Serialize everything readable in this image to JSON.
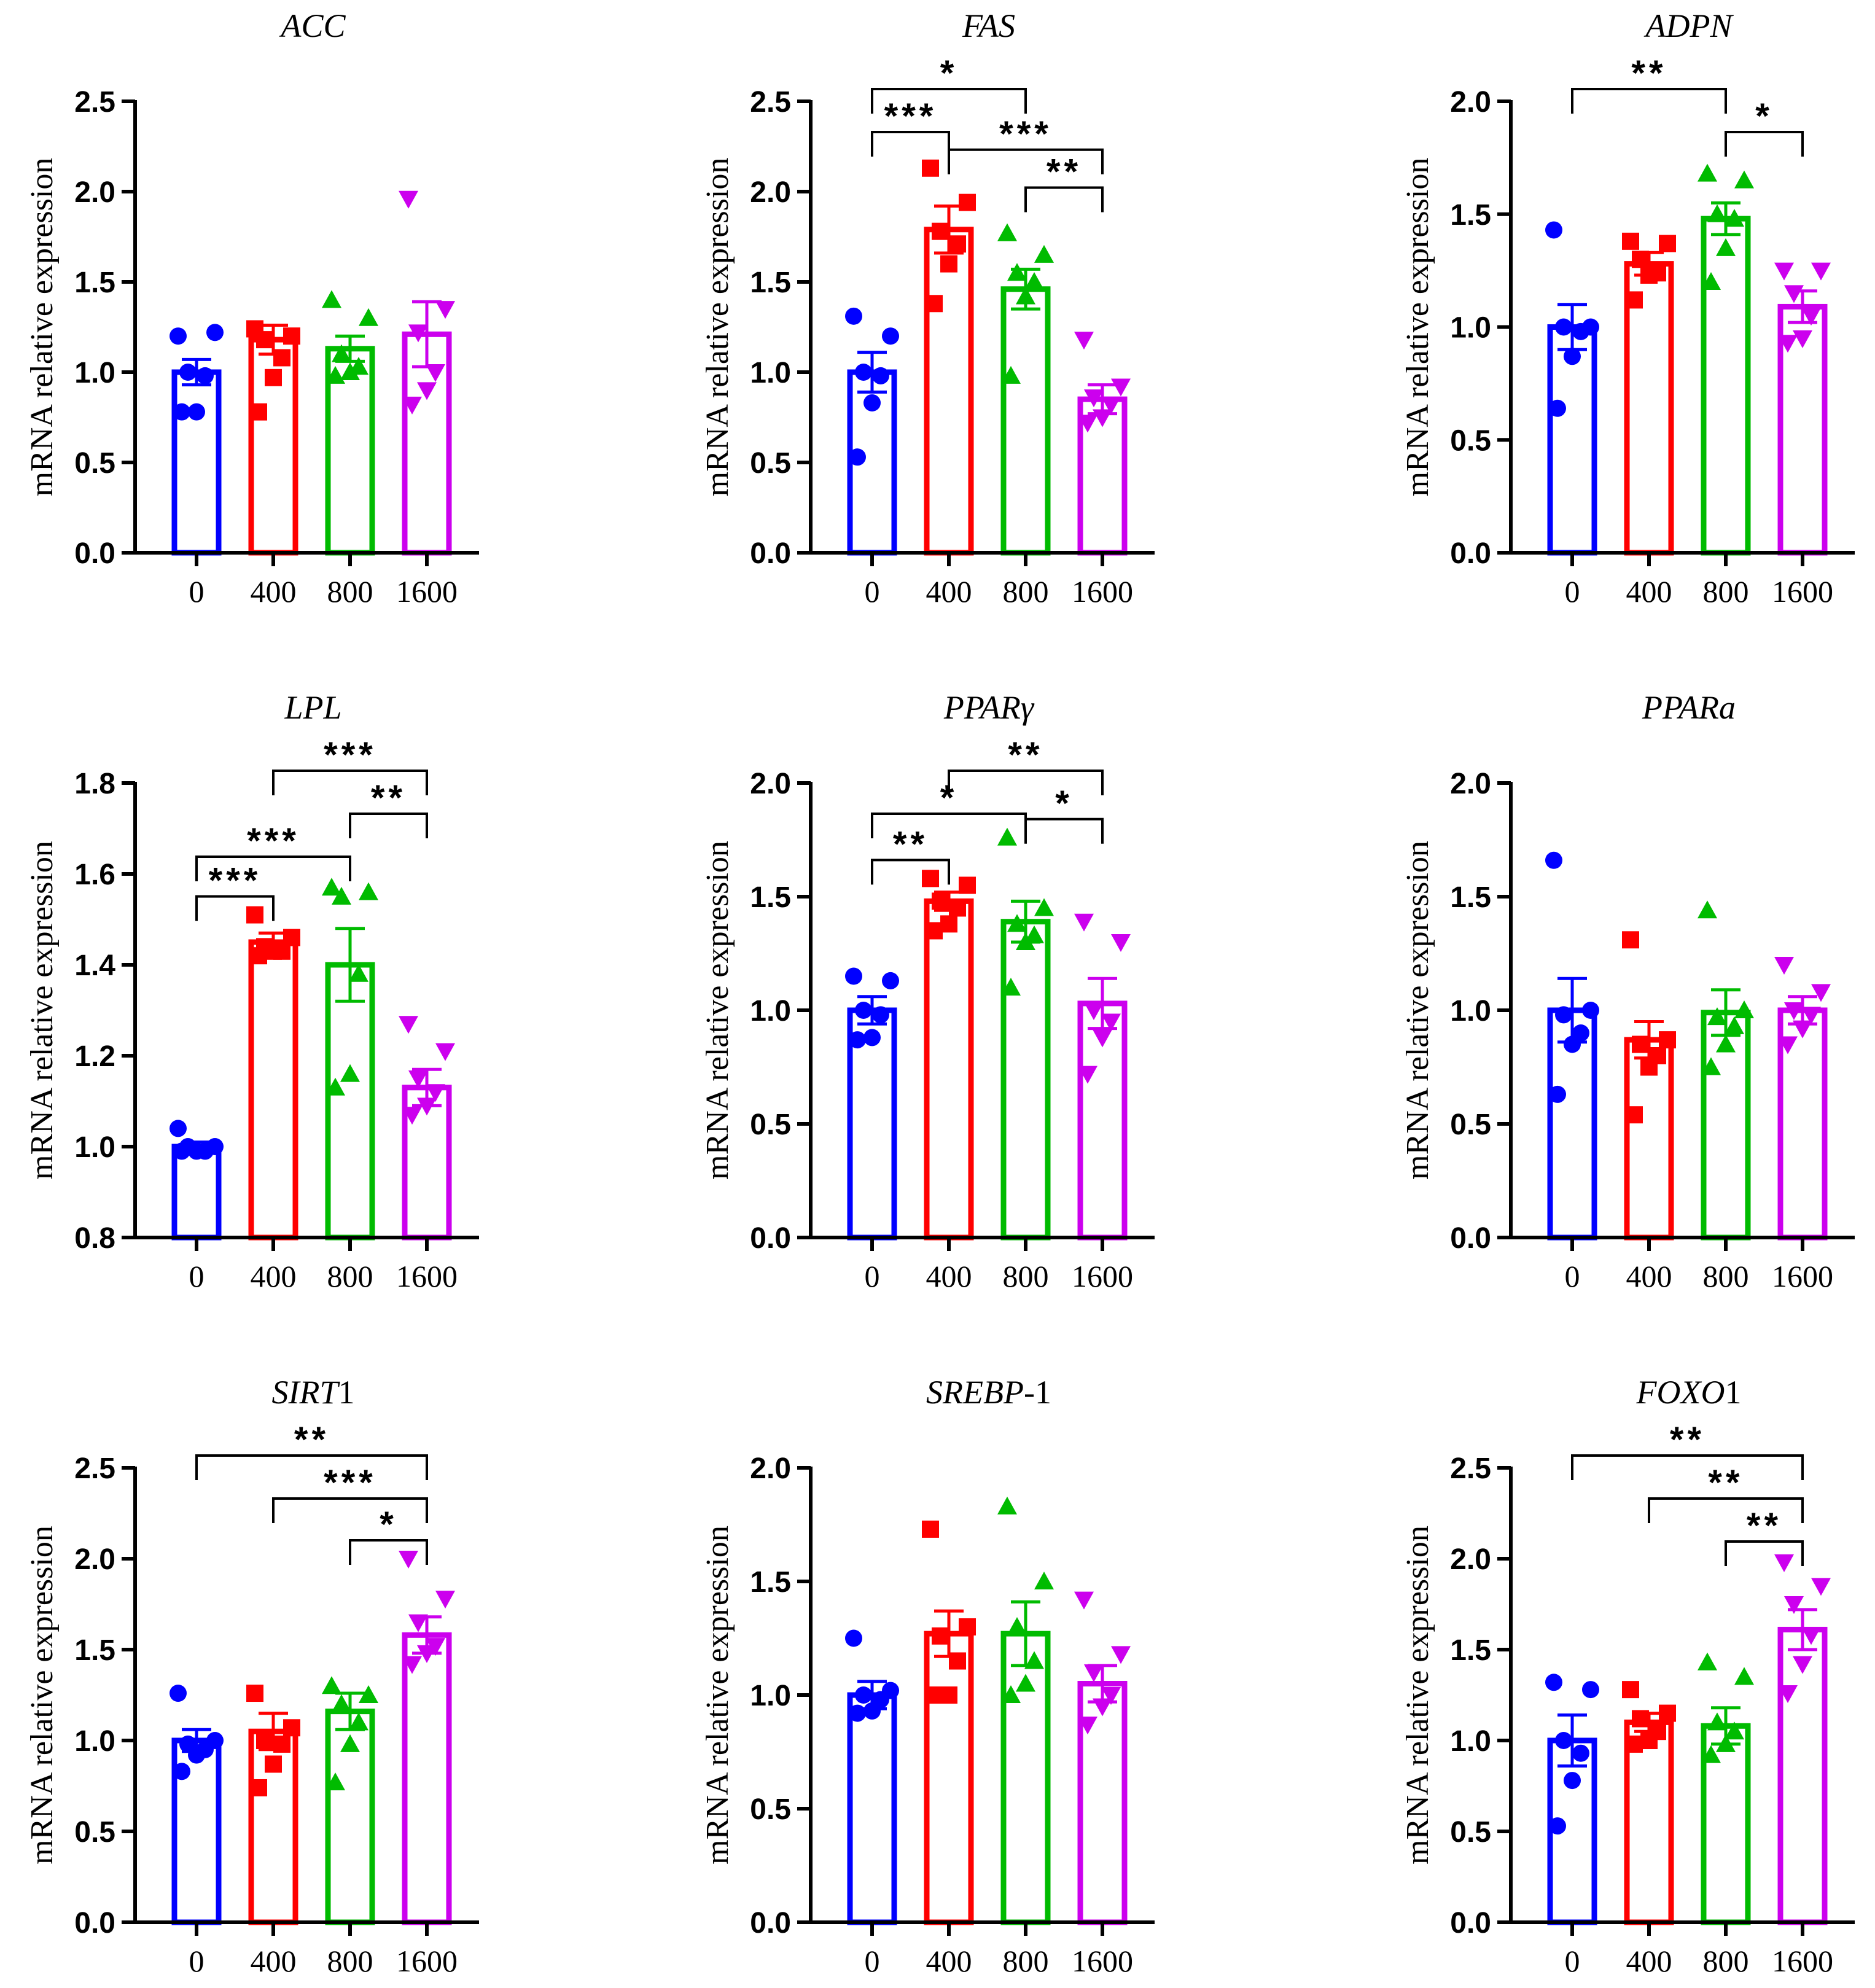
{
  "figure": {
    "panel_count": 9
  },
  "colors": {
    "group0": "#0000ff",
    "group400": "#ff0000",
    "group800": "#00bb00",
    "group1600": "#cc00ee",
    "axis": "#000000"
  },
  "chart_data": [
    {
      "type": "bar",
      "title": "ACC",
      "title_parts": [
        {
          "text": "ACC",
          "italic": true
        }
      ],
      "xlabel": "",
      "ylabel": "mRNA relative expression",
      "categories": [
        "0",
        "400",
        "800",
        "1600"
      ],
      "ylim": [
        0,
        2.5
      ],
      "yticks": [
        "0.0",
        "0.5",
        "1.0",
        "1.5",
        "2.0",
        "2.5"
      ],
      "means": [
        1.0,
        1.18,
        1.13,
        1.21
      ],
      "sem": [
        0.07,
        0.08,
        0.07,
        0.18
      ],
      "points": [
        [
          1.2,
          1.22,
          1.0,
          0.98,
          0.78,
          0.78
        ],
        [
          1.24,
          1.2,
          1.18,
          1.08,
          0.97,
          0.78
        ],
        [
          1.4,
          1.3,
          1.1,
          1.03,
          1.0,
          0.98
        ],
        [
          1.96,
          1.35,
          1.22,
          1.0,
          0.9,
          0.82
        ]
      ],
      "significance": []
    },
    {
      "type": "bar",
      "title": "FAS",
      "title_parts": [
        {
          "text": "FAS",
          "italic": true
        }
      ],
      "xlabel": "",
      "ylabel": "mRNA relative expression",
      "categories": [
        "0",
        "400",
        "800",
        "1600"
      ],
      "ylim": [
        0,
        2.5
      ],
      "yticks": [
        "0.0",
        "0.5",
        "1.0",
        "1.5",
        "2.0",
        "2.5"
      ],
      "means": [
        1.0,
        1.79,
        1.46,
        0.85
      ],
      "sem": [
        0.11,
        0.13,
        0.11,
        0.08
      ],
      "points": [
        [
          1.31,
          1.2,
          1.0,
          0.98,
          0.83,
          0.53
        ],
        [
          2.13,
          1.94,
          1.78,
          1.71,
          1.6,
          1.38
        ],
        [
          1.77,
          1.65,
          1.55,
          1.5,
          1.42,
          0.98
        ],
        [
          1.18,
          0.92,
          0.86,
          0.82,
          0.75,
          0.72
        ]
      ],
      "significance": [
        {
          "from": 0,
          "to": 2,
          "label": "*"
        },
        {
          "from": 0,
          "to": 1,
          "label": "***"
        },
        {
          "from": 1,
          "to": 3,
          "label": "***"
        },
        {
          "from": 2,
          "to": 3,
          "label": "**"
        }
      ]
    },
    {
      "type": "bar",
      "title": "ADPN",
      "title_parts": [
        {
          "text": "ADPN",
          "italic": true
        }
      ],
      "xlabel": "",
      "ylabel": "mRNA relative expression",
      "categories": [
        "0",
        "400",
        "800",
        "1600"
      ],
      "ylim": [
        0,
        2.0
      ],
      "yticks": [
        "0.0",
        "0.5",
        "1.0",
        "1.5",
        "2.0"
      ],
      "means": [
        1.0,
        1.28,
        1.48,
        1.09
      ],
      "sem": [
        0.1,
        0.05,
        0.07,
        0.07
      ],
      "points": [
        [
          1.43,
          1.0,
          1.0,
          0.98,
          0.87,
          0.64
        ],
        [
          1.38,
          1.37,
          1.3,
          1.24,
          1.23,
          1.12
        ],
        [
          1.68,
          1.65,
          1.5,
          1.48,
          1.35,
          1.2
        ],
        [
          1.25,
          1.25,
          1.15,
          1.05,
          0.95,
          0.93
        ]
      ],
      "significance": [
        {
          "from": 0,
          "to": 2,
          "label": "**"
        },
        {
          "from": 2,
          "to": 3,
          "label": "*"
        }
      ]
    },
    {
      "type": "bar",
      "title": "LPL",
      "title_parts": [
        {
          "text": "LPL",
          "italic": true
        }
      ],
      "xlabel": "",
      "ylabel": "mRNA relative expression",
      "categories": [
        "0",
        "400",
        "800",
        "1600"
      ],
      "ylim": [
        0.8,
        1.8
      ],
      "yticks": [
        "0.8",
        "1.0",
        "1.2",
        "1.4",
        "1.6",
        "1.8"
      ],
      "means": [
        1.0,
        1.45,
        1.4,
        1.13
      ],
      "sem": [
        0.01,
        0.02,
        0.08,
        0.04
      ],
      "points": [
        [
          1.04,
          1.0,
          1.0,
          0.99,
          0.99,
          0.99
        ],
        [
          1.51,
          1.46,
          1.44,
          1.43,
          1.43,
          1.42
        ],
        [
          1.57,
          1.56,
          1.55,
          1.38,
          1.16,
          1.13
        ],
        [
          1.27,
          1.21,
          1.15,
          1.12,
          1.09,
          1.07
        ]
      ],
      "significance": [
        {
          "from": 1,
          "to": 3,
          "label": "***"
        },
        {
          "from": 2,
          "to": 3,
          "label": "**"
        },
        {
          "from": 0,
          "to": 2,
          "label": "***"
        },
        {
          "from": 0,
          "to": 1,
          "label": "***"
        }
      ]
    },
    {
      "type": "bar",
      "title": "PPARγ",
      "title_parts": [
        {
          "text": "PPAR",
          "italic": true
        },
        {
          "text": "γ",
          "italic": true
        }
      ],
      "xlabel": "",
      "ylabel": "mRNA relative expression",
      "categories": [
        "0",
        "400",
        "800",
        "1600"
      ],
      "ylim": [
        0,
        2.0
      ],
      "yticks": [
        "0.0",
        "0.5",
        "1.0",
        "1.5",
        "2.0"
      ],
      "means": [
        1.0,
        1.48,
        1.39,
        1.03
      ],
      "sem": [
        0.06,
        0.04,
        0.09,
        0.11
      ],
      "points": [
        [
          1.15,
          1.13,
          1.0,
          0.98,
          0.88,
          0.87
        ],
        [
          1.58,
          1.55,
          1.48,
          1.45,
          1.38,
          1.35
        ],
        [
          1.76,
          1.45,
          1.38,
          1.33,
          1.3,
          1.1
        ],
        [
          1.39,
          1.3,
          1.0,
          0.95,
          0.88,
          0.72
        ]
      ],
      "significance": [
        {
          "from": 1,
          "to": 3,
          "label": "**"
        },
        {
          "from": 0,
          "to": 2,
          "label": "*"
        },
        {
          "from": 2,
          "to": 3,
          "label": "*"
        },
        {
          "from": 0,
          "to": 1,
          "label": "**"
        }
      ]
    },
    {
      "type": "bar",
      "title": "PPARa",
      "title_parts": [
        {
          "text": "PPARa",
          "italic": true
        }
      ],
      "xlabel": "",
      "ylabel": "mRNA relative expression",
      "categories": [
        "0",
        "400",
        "800",
        "1600"
      ],
      "ylim": [
        0,
        2.0
      ],
      "yticks": [
        "0.0",
        "0.5",
        "1.0",
        "1.5",
        "2.0"
      ],
      "means": [
        1.0,
        0.87,
        0.99,
        1.0
      ],
      "sem": [
        0.14,
        0.08,
        0.1,
        0.06
      ],
      "points": [
        [
          1.66,
          1.0,
          0.98,
          0.9,
          0.85,
          0.63
        ],
        [
          1.31,
          0.87,
          0.85,
          0.8,
          0.75,
          0.54
        ],
        [
          1.44,
          1.0,
          0.97,
          0.93,
          0.85,
          0.75
        ],
        [
          1.2,
          1.08,
          1.0,
          0.98,
          0.92,
          0.85
        ]
      ],
      "significance": []
    },
    {
      "type": "bar",
      "title": "SIRT1",
      "title_parts": [
        {
          "text": "SIRT",
          "italic": true
        },
        {
          "text": "1",
          "italic": false
        }
      ],
      "xlabel": "",
      "ylabel": "mRNA relative expression",
      "categories": [
        "0",
        "400",
        "800",
        "1600"
      ],
      "ylim": [
        0,
        2.5
      ],
      "yticks": [
        "0.0",
        "0.5",
        "1.0",
        "1.5",
        "2.0",
        "2.5"
      ],
      "means": [
        1.0,
        1.05,
        1.16,
        1.58
      ],
      "sem": [
        0.06,
        0.1,
        0.1,
        0.1
      ],
      "points": [
        [
          1.26,
          1.0,
          0.98,
          0.95,
          0.92,
          0.83
        ],
        [
          1.26,
          1.07,
          1.0,
          0.98,
          0.87,
          0.74
        ],
        [
          1.3,
          1.25,
          1.2,
          1.1,
          0.98,
          0.77
        ],
        [
          2.0,
          1.78,
          1.65,
          1.52,
          1.48,
          1.42
        ]
      ],
      "significance": [
        {
          "from": 0,
          "to": 3,
          "label": "**"
        },
        {
          "from": 1,
          "to": 3,
          "label": "***"
        },
        {
          "from": 2,
          "to": 3,
          "label": "*"
        }
      ]
    },
    {
      "type": "bar",
      "title": "SREBP-1",
      "title_parts": [
        {
          "text": "SREBP",
          "italic": true
        },
        {
          "text": "-1",
          "italic": false
        }
      ],
      "xlabel": "",
      "ylabel": "mRNA relative expression",
      "categories": [
        "0",
        "400",
        "800",
        "1600"
      ],
      "ylim": [
        0,
        2.0
      ],
      "yticks": [
        "0.0",
        "0.5",
        "1.0",
        "1.5",
        "2.0"
      ],
      "means": [
        1.0,
        1.27,
        1.27,
        1.05
      ],
      "sem": [
        0.06,
        0.1,
        0.14,
        0.08
      ],
      "points": [
        [
          1.25,
          1.02,
          1.0,
          0.98,
          0.93,
          0.92
        ],
        [
          1.73,
          1.3,
          1.26,
          1.15,
          1.0,
          1.0
        ],
        [
          1.83,
          1.5,
          1.3,
          1.15,
          1.05,
          1.0
        ],
        [
          1.42,
          1.18,
          1.1,
          1.0,
          0.95,
          0.87
        ]
      ],
      "significance": []
    },
    {
      "type": "bar",
      "title": "FOXO1",
      "title_parts": [
        {
          "text": "FOXO",
          "italic": true
        },
        {
          "text": "1",
          "italic": false
        }
      ],
      "xlabel": "",
      "ylabel": "mRNA relative expression",
      "categories": [
        "0",
        "400",
        "800",
        "1600"
      ],
      "ylim": [
        0,
        2.5
      ],
      "yticks": [
        "0.0",
        "0.5",
        "1.0",
        "1.5",
        "2.0",
        "2.5"
      ],
      "means": [
        1.0,
        1.1,
        1.08,
        1.61
      ],
      "sem": [
        0.14,
        0.05,
        0.1,
        0.11
      ],
      "points": [
        [
          1.32,
          1.28,
          1.0,
          0.93,
          0.78,
          0.53
        ],
        [
          1.28,
          1.15,
          1.12,
          1.05,
          1.0,
          0.98
        ],
        [
          1.43,
          1.35,
          1.1,
          1.05,
          0.98,
          0.92
        ],
        [
          1.98,
          1.85,
          1.75,
          1.58,
          1.42,
          1.26
        ]
      ],
      "significance": [
        {
          "from": 0,
          "to": 3,
          "label": "**"
        },
        {
          "from": 1,
          "to": 3,
          "label": "**"
        },
        {
          "from": 2,
          "to": 3,
          "label": "**"
        }
      ]
    }
  ]
}
